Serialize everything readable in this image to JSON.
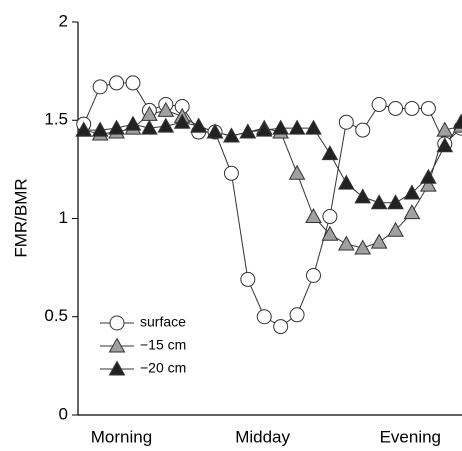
{
  "chart_data": {
    "type": "line",
    "y_label": "FMR/BMR",
    "x": [
      0,
      1,
      2,
      3,
      4,
      5,
      6,
      7,
      8,
      9,
      10,
      11,
      12,
      13,
      14,
      15,
      16,
      17,
      18,
      19,
      20,
      21,
      22,
      23
    ],
    "xlim": [
      -0.35,
      23.05
    ],
    "xticks": [
      {
        "value": 2.3,
        "label": "Morning"
      },
      {
        "value": 10.9,
        "label": "Midday"
      },
      {
        "value": 19.9,
        "label": "Evening"
      }
    ],
    "ylim": [
      0,
      2
    ],
    "yticks": [
      0,
      0.5,
      1,
      1.5,
      2
    ],
    "legend": "lower left",
    "series": [
      {
        "name": "surface",
        "marker": "circle",
        "color": "#ffffff",
        "values": [
          1.48,
          1.67,
          1.69,
          1.69,
          1.55,
          1.58,
          1.57,
          1.44,
          1.44,
          1.23,
          0.69,
          0.5,
          0.45,
          0.51,
          0.71,
          1.01,
          1.49,
          1.45,
          1.58,
          1.56,
          1.56,
          1.56,
          1.38,
          1.46
        ]
      },
      {
        "name": "−15 cm",
        "marker": "triangle",
        "color": "#a0a0a0",
        "values": [
          1.45,
          1.43,
          1.44,
          1.46,
          1.53,
          1.55,
          1.52,
          1.47,
          1.44,
          1.42,
          1.44,
          1.46,
          1.44,
          1.23,
          1.01,
          0.92,
          0.87,
          0.85,
          0.88,
          0.94,
          1.03,
          1.17,
          1.45,
          1.47
        ]
      },
      {
        "name": "−20 cm",
        "marker": "triangle",
        "color": "#222222",
        "values": [
          1.45,
          1.45,
          1.46,
          1.48,
          1.46,
          1.47,
          1.49,
          1.47,
          1.44,
          1.42,
          1.44,
          1.45,
          1.46,
          1.46,
          1.46,
          1.33,
          1.18,
          1.11,
          1.08,
          1.08,
          1.13,
          1.21,
          1.37,
          1.49
        ]
      }
    ]
  }
}
